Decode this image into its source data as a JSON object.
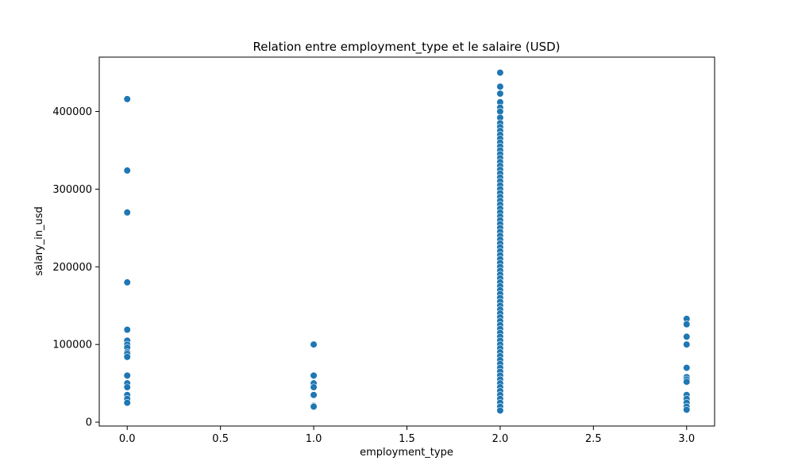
{
  "chart_data": {
    "type": "scatter",
    "title": "Relation entre employment_type et le salaire (USD)",
    "xlabel": "employment_type",
    "ylabel": "salary_in_usd",
    "xlim": [
      -0.15,
      3.15
    ],
    "ylim": [
      -5000,
      470000
    ],
    "xticks": [
      0.0,
      0.5,
      1.0,
      1.5,
      2.0,
      2.5,
      3.0
    ],
    "xtick_labels": [
      "0.0",
      "0.5",
      "1.0",
      "1.5",
      "2.0",
      "2.5",
      "3.0"
    ],
    "yticks": [
      0,
      100000,
      200000,
      300000,
      400000
    ],
    "ytick_labels": [
      "0",
      "100000",
      "200000",
      "300000",
      "400000"
    ],
    "grid": false,
    "colors": {
      "marker": "#1f77b4",
      "marker_edge": "#ffffff"
    },
    "series": [
      {
        "points": [
          [
            0,
            416000
          ],
          [
            0,
            324000
          ],
          [
            0,
            270000
          ],
          [
            0,
            180000
          ],
          [
            0,
            119000
          ],
          [
            0,
            105000
          ],
          [
            0,
            100000
          ],
          [
            0,
            96000
          ],
          [
            0,
            90000
          ],
          [
            0,
            88000
          ],
          [
            0,
            84000
          ],
          [
            0,
            60000
          ],
          [
            0,
            50000
          ],
          [
            0,
            45000
          ],
          [
            0,
            35000
          ],
          [
            0,
            30000
          ],
          [
            0,
            25000
          ],
          [
            1,
            100000
          ],
          [
            1,
            60000
          ],
          [
            1,
            50000
          ],
          [
            1,
            45000
          ],
          [
            1,
            35000
          ],
          [
            1,
            21000
          ],
          [
            1,
            20000
          ],
          [
            2,
            450000
          ],
          [
            2,
            432000
          ],
          [
            2,
            423000
          ],
          [
            2,
            412000
          ],
          [
            2,
            405000
          ],
          [
            2,
            400000
          ],
          [
            2,
            392000
          ],
          [
            2,
            385000
          ],
          [
            2,
            380000
          ],
          [
            2,
            375000
          ],
          [
            2,
            370000
          ],
          [
            2,
            365000
          ],
          [
            2,
            360000
          ],
          [
            2,
            355000
          ],
          [
            2,
            350000
          ],
          [
            2,
            345000
          ],
          [
            2,
            340000
          ],
          [
            2,
            335000
          ],
          [
            2,
            330000
          ],
          [
            2,
            325000
          ],
          [
            2,
            320000
          ],
          [
            2,
            315000
          ],
          [
            2,
            310000
          ],
          [
            2,
            305000
          ],
          [
            2,
            300000
          ],
          [
            2,
            295000
          ],
          [
            2,
            290000
          ],
          [
            2,
            285000
          ],
          [
            2,
            280000
          ],
          [
            2,
            275000
          ],
          [
            2,
            270000
          ],
          [
            2,
            265000
          ],
          [
            2,
            260000
          ],
          [
            2,
            255000
          ],
          [
            2,
            250000
          ],
          [
            2,
            245000
          ],
          [
            2,
            240000
          ],
          [
            2,
            235000
          ],
          [
            2,
            230000
          ],
          [
            2,
            225000
          ],
          [
            2,
            220000
          ],
          [
            2,
            215000
          ],
          [
            2,
            210000
          ],
          [
            2,
            205000
          ],
          [
            2,
            200000
          ],
          [
            2,
            195000
          ],
          [
            2,
            190000
          ],
          [
            2,
            185000
          ],
          [
            2,
            180000
          ],
          [
            2,
            175000
          ],
          [
            2,
            170000
          ],
          [
            2,
            165000
          ],
          [
            2,
            160000
          ],
          [
            2,
            155000
          ],
          [
            2,
            150000
          ],
          [
            2,
            145000
          ],
          [
            2,
            140000
          ],
          [
            2,
            135000
          ],
          [
            2,
            130000
          ],
          [
            2,
            125000
          ],
          [
            2,
            120000
          ],
          [
            2,
            115000
          ],
          [
            2,
            110000
          ],
          [
            2,
            105000
          ],
          [
            2,
            100000
          ],
          [
            2,
            95000
          ],
          [
            2,
            90000
          ],
          [
            2,
            85000
          ],
          [
            2,
            80000
          ],
          [
            2,
            75000
          ],
          [
            2,
            70000
          ],
          [
            2,
            65000
          ],
          [
            2,
            60000
          ],
          [
            2,
            55000
          ],
          [
            2,
            50000
          ],
          [
            2,
            45000
          ],
          [
            2,
            40000
          ],
          [
            2,
            35000
          ],
          [
            2,
            30000
          ],
          [
            2,
            25000
          ],
          [
            2,
            20000
          ],
          [
            2,
            15000
          ],
          [
            3,
            133000
          ],
          [
            3,
            126000
          ],
          [
            3,
            110000
          ],
          [
            3,
            100000
          ],
          [
            3,
            70000
          ],
          [
            3,
            58000
          ],
          [
            3,
            55000
          ],
          [
            3,
            52000
          ],
          [
            3,
            35000
          ],
          [
            3,
            30000
          ],
          [
            3,
            25000
          ],
          [
            3,
            20000
          ],
          [
            3,
            16000
          ]
        ]
      }
    ]
  }
}
